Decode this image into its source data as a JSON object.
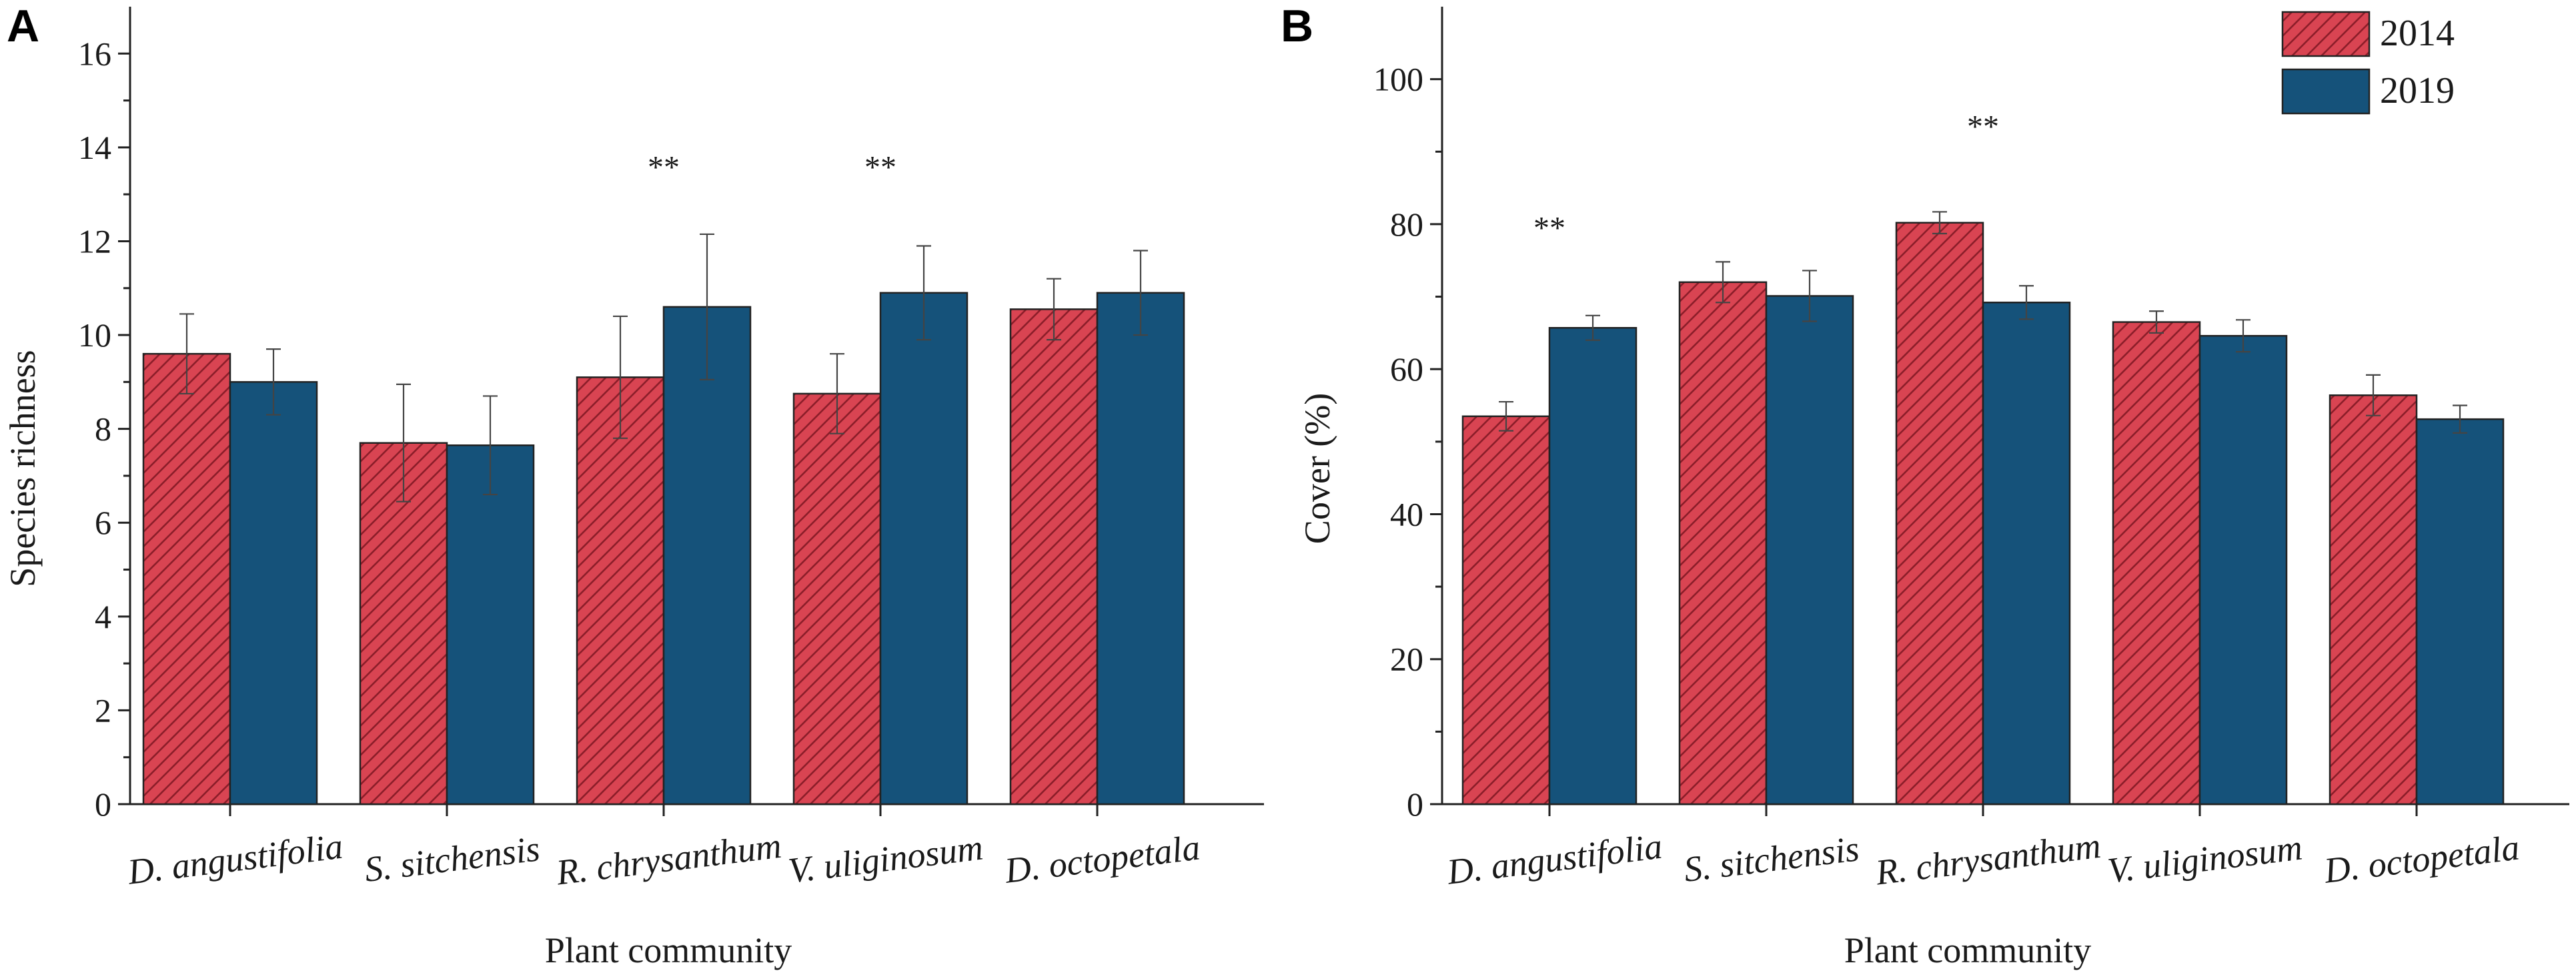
{
  "colors": {
    "series_2014": "#d94452",
    "series_2014_hatch": "#8c1e2a",
    "series_2019": "#15527a"
  },
  "legend": {
    "items": [
      {
        "name": "2014",
        "style": "hatched"
      },
      {
        "name": "2019",
        "style": "solid"
      }
    ]
  },
  "chart_data": [
    {
      "panel": "A",
      "type": "bar",
      "xlabel": "Plant community",
      "ylabel": "Species richness",
      "ylim": [
        0,
        17
      ],
      "yticks": [
        0,
        2,
        4,
        6,
        8,
        10,
        12,
        14,
        16
      ],
      "categories": [
        "D. angustifolia",
        "S. sitchensis",
        "R. chrysanthum",
        "V. uliginosum",
        "D. octopetala"
      ],
      "series": [
        {
          "name": "2014",
          "values": [
            9.6,
            7.7,
            9.1,
            8.75,
            10.55
          ],
          "errors": [
            0.85,
            1.25,
            1.3,
            0.85,
            0.65
          ]
        },
        {
          "name": "2019",
          "values": [
            9.0,
            7.65,
            10.6,
            10.9,
            10.9
          ],
          "errors": [
            0.7,
            1.05,
            1.55,
            1.0,
            0.9
          ]
        }
      ],
      "annotations": [
        {
          "category": "R. chrysanthum",
          "text": "**",
          "y": 13.35
        },
        {
          "category": "V. uliginosum",
          "text": "**",
          "y": 13.35
        }
      ]
    },
    {
      "panel": "B",
      "type": "bar",
      "xlabel": "Plant community",
      "ylabel": "Cover (%)",
      "ylim": [
        0,
        110
      ],
      "yticks": [
        0,
        20,
        40,
        60,
        80,
        100
      ],
      "categories": [
        "D. angustifolia",
        "S. sitchensis",
        "R. chrysanthum",
        "V. uliginosum",
        "D. octopetala"
      ],
      "series": [
        {
          "name": "2014",
          "values": [
            53.5,
            72,
            80.2,
            66.5,
            56.4
          ],
          "errors": [
            2.0,
            2.8,
            1.5,
            1.5,
            2.8
          ]
        },
        {
          "name": "2019",
          "values": [
            65.7,
            70.1,
            69.2,
            64.6,
            53.1
          ],
          "errors": [
            1.7,
            3.5,
            2.3,
            2.2,
            1.9
          ]
        }
      ],
      "annotations": [
        {
          "category": "D. angustifolia",
          "text": "**",
          "y": 78
        },
        {
          "category": "R. chrysanthum",
          "text": "**",
          "y": 92
        }
      ]
    }
  ]
}
